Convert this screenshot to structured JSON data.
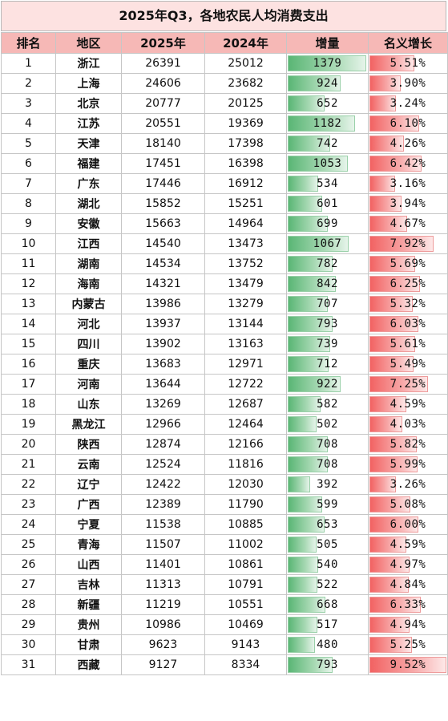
{
  "title": "2025年Q3，各地农民人均消费支出",
  "headers": [
    "排名",
    "地区",
    "2025年",
    "2024年",
    "增量",
    "名义增长"
  ],
  "rows": [
    {
      "rank": "1",
      "region": "浙江",
      "y2025": "26391",
      "y2024": "25012",
      "inc": "1379",
      "growth": "5.51%",
      "inc_val": 1379,
      "growth_val": 5.51
    },
    {
      "rank": "2",
      "region": "上海",
      "y2025": "24606",
      "y2024": "23682",
      "inc": "924",
      "growth": "3.90%",
      "inc_val": 924,
      "growth_val": 3.9
    },
    {
      "rank": "3",
      "region": "北京",
      "y2025": "20777",
      "y2024": "20125",
      "inc": "652",
      "growth": "3.24%",
      "inc_val": 652,
      "growth_val": 3.24
    },
    {
      "rank": "4",
      "region": "江苏",
      "y2025": "20551",
      "y2024": "19369",
      "inc": "1182",
      "growth": "6.10%",
      "inc_val": 1182,
      "growth_val": 6.1
    },
    {
      "rank": "5",
      "region": "天津",
      "y2025": "18140",
      "y2024": "17398",
      "inc": "742",
      "growth": "4.26%",
      "inc_val": 742,
      "growth_val": 4.26
    },
    {
      "rank": "6",
      "region": "福建",
      "y2025": "17451",
      "y2024": "16398",
      "inc": "1053",
      "growth": "6.42%",
      "inc_val": 1053,
      "growth_val": 6.42
    },
    {
      "rank": "7",
      "region": "广东",
      "y2025": "17446",
      "y2024": "16912",
      "inc": "534",
      "growth": "3.16%",
      "inc_val": 534,
      "growth_val": 3.16
    },
    {
      "rank": "8",
      "region": "湖北",
      "y2025": "15852",
      "y2024": "15251",
      "inc": "601",
      "growth": "3.94%",
      "inc_val": 601,
      "growth_val": 3.94
    },
    {
      "rank": "9",
      "region": "安徽",
      "y2025": "15663",
      "y2024": "14964",
      "inc": "699",
      "growth": "4.67%",
      "inc_val": 699,
      "growth_val": 4.67
    },
    {
      "rank": "10",
      "region": "江西",
      "y2025": "14540",
      "y2024": "13473",
      "inc": "1067",
      "growth": "7.92%",
      "inc_val": 1067,
      "growth_val": 7.92
    },
    {
      "rank": "11",
      "region": "湖南",
      "y2025": "14534",
      "y2024": "13752",
      "inc": "782",
      "growth": "5.69%",
      "inc_val": 782,
      "growth_val": 5.69
    },
    {
      "rank": "12",
      "region": "海南",
      "y2025": "14321",
      "y2024": "13479",
      "inc": "842",
      "growth": "6.25%",
      "inc_val": 842,
      "growth_val": 6.25
    },
    {
      "rank": "13",
      "region": "内蒙古",
      "y2025": "13986",
      "y2024": "13279",
      "inc": "707",
      "growth": "5.32%",
      "inc_val": 707,
      "growth_val": 5.32
    },
    {
      "rank": "14",
      "region": "河北",
      "y2025": "13937",
      "y2024": "13144",
      "inc": "793",
      "growth": "6.03%",
      "inc_val": 793,
      "growth_val": 6.03
    },
    {
      "rank": "15",
      "region": "四川",
      "y2025": "13902",
      "y2024": "13163",
      "inc": "739",
      "growth": "5.61%",
      "inc_val": 739,
      "growth_val": 5.61
    },
    {
      "rank": "16",
      "region": "重庆",
      "y2025": "13683",
      "y2024": "12971",
      "inc": "712",
      "growth": "5.49%",
      "inc_val": 712,
      "growth_val": 5.49
    },
    {
      "rank": "17",
      "region": "河南",
      "y2025": "13644",
      "y2024": "12722",
      "inc": "922",
      "growth": "7.25%",
      "inc_val": 922,
      "growth_val": 7.25
    },
    {
      "rank": "18",
      "region": "山东",
      "y2025": "13269",
      "y2024": "12687",
      "inc": "582",
      "growth": "4.59%",
      "inc_val": 582,
      "growth_val": 4.59
    },
    {
      "rank": "19",
      "region": "黑龙江",
      "y2025": "12966",
      "y2024": "12464",
      "inc": "502",
      "growth": "4.03%",
      "inc_val": 502,
      "growth_val": 4.03
    },
    {
      "rank": "20",
      "region": "陕西",
      "y2025": "12874",
      "y2024": "12166",
      "inc": "708",
      "growth": "5.82%",
      "inc_val": 708,
      "growth_val": 5.82
    },
    {
      "rank": "21",
      "region": "云南",
      "y2025": "12524",
      "y2024": "11816",
      "inc": "708",
      "growth": "5.99%",
      "inc_val": 708,
      "growth_val": 5.99
    },
    {
      "rank": "22",
      "region": "辽宁",
      "y2025": "12422",
      "y2024": "12030",
      "inc": "392",
      "growth": "3.26%",
      "inc_val": 392,
      "growth_val": 3.26
    },
    {
      "rank": "23",
      "region": "广西",
      "y2025": "12389",
      "y2024": "11790",
      "inc": "599",
      "growth": "5.08%",
      "inc_val": 599,
      "growth_val": 5.08
    },
    {
      "rank": "24",
      "region": "宁夏",
      "y2025": "11538",
      "y2024": "10885",
      "inc": "653",
      "growth": "6.00%",
      "inc_val": 653,
      "growth_val": 6.0
    },
    {
      "rank": "25",
      "region": "青海",
      "y2025": "11507",
      "y2024": "11002",
      "inc": "505",
      "growth": "4.59%",
      "inc_val": 505,
      "growth_val": 4.59
    },
    {
      "rank": "26",
      "region": "山西",
      "y2025": "11401",
      "y2024": "10861",
      "inc": "540",
      "growth": "4.97%",
      "inc_val": 540,
      "growth_val": 4.97
    },
    {
      "rank": "27",
      "region": "吉林",
      "y2025": "11313",
      "y2024": "10791",
      "inc": "522",
      "growth": "4.84%",
      "inc_val": 522,
      "growth_val": 4.84
    },
    {
      "rank": "28",
      "region": "新疆",
      "y2025": "11219",
      "y2024": "10551",
      "inc": "668",
      "growth": "6.33%",
      "inc_val": 668,
      "growth_val": 6.33
    },
    {
      "rank": "29",
      "region": "贵州",
      "y2025": "10986",
      "y2024": "10469",
      "inc": "517",
      "growth": "4.94%",
      "inc_val": 517,
      "growth_val": 4.94
    },
    {
      "rank": "30",
      "region": "甘肃",
      "y2025": "9623",
      "y2024": "9143",
      "inc": "480",
      "growth": "5.25%",
      "inc_val": 480,
      "growth_val": 5.25
    },
    {
      "rank": "31",
      "region": "西藏",
      "y2025": "9127",
      "y2024": "8334",
      "inc": "793",
      "growth": "9.52%",
      "inc_val": 793,
      "growth_val": 9.52
    }
  ],
  "colors": {
    "title_bg": "#fde2e1",
    "header_bg": "#f6b8b6",
    "inc_bar": "#5ab675",
    "growth_bar": "#f26262"
  }
}
